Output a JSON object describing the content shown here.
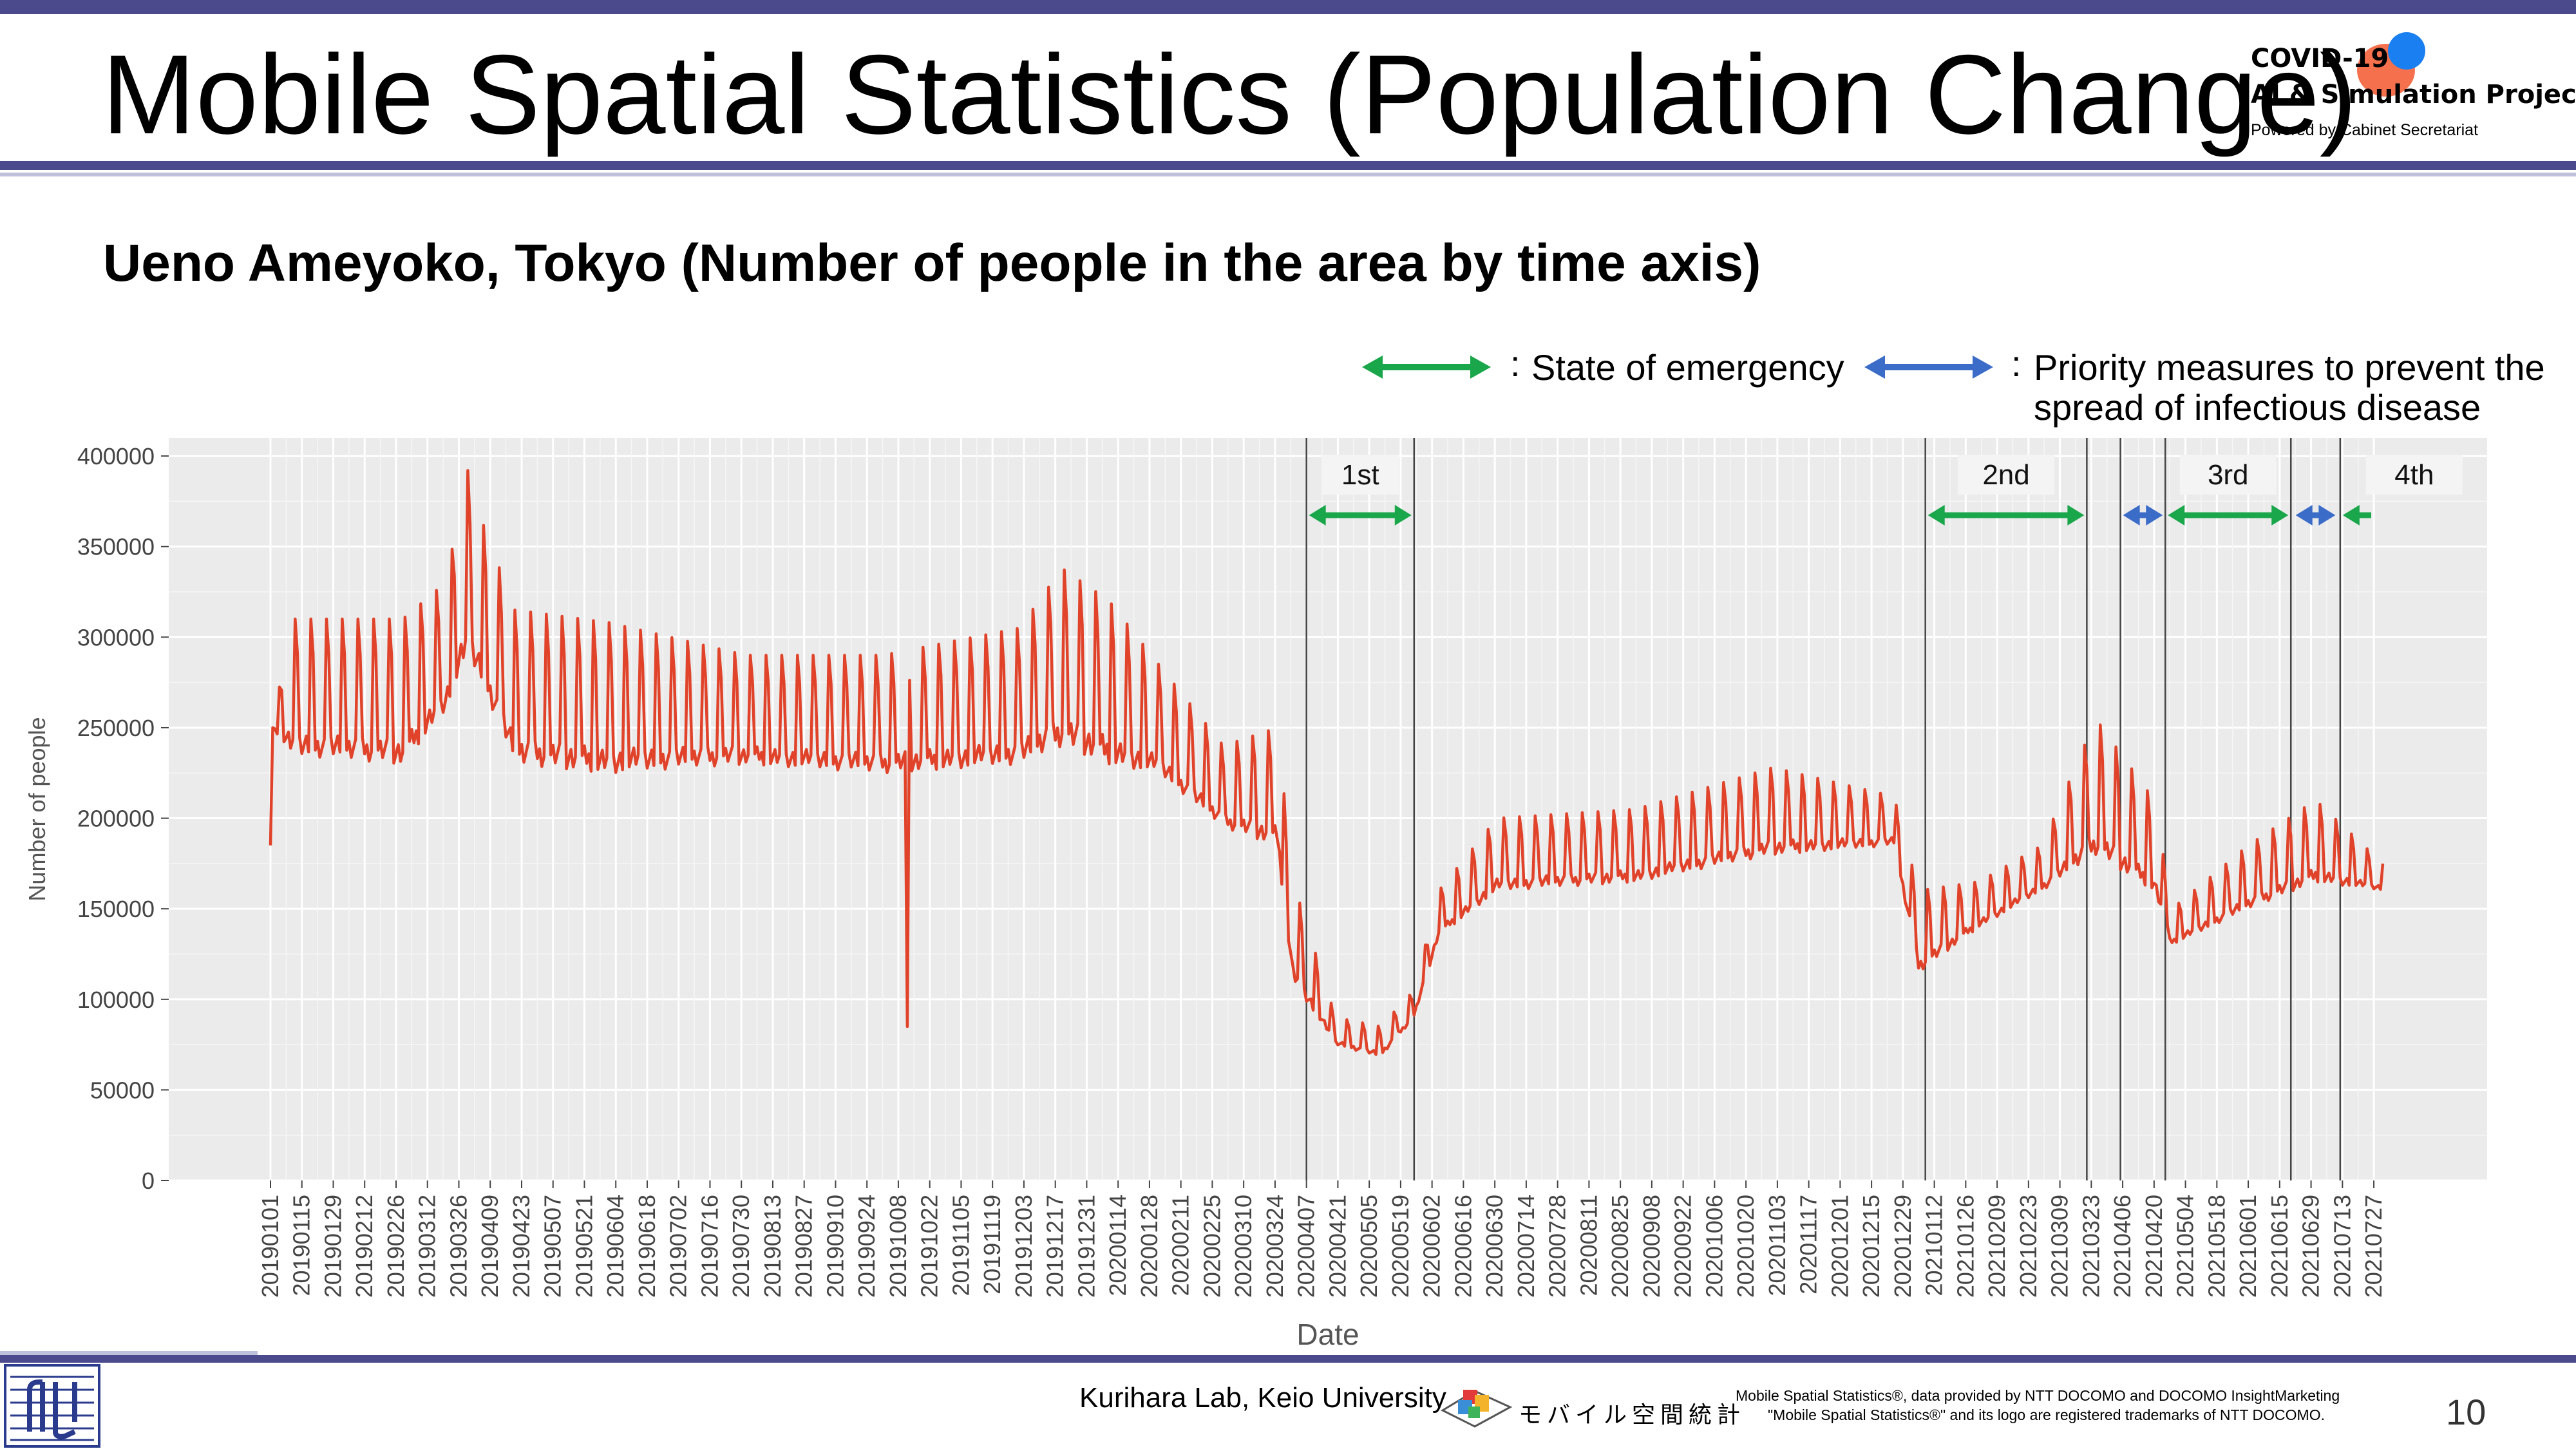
{
  "header": {
    "title": "Mobile Spatial Statistics (Population Change)",
    "logo_line1": "COVID-19",
    "logo_line2": "AI & Simulation Project",
    "logo_line3": "Powered by Cabinet Secretariat"
  },
  "subtitle": "Ueno Ameyoko, Tokyo (Number of people in the area by time axis)",
  "legend": {
    "emergency_label": "State of emergency",
    "priority_label_1": "Priority measures to prevent the",
    "priority_label_2": "spread of infectious disease",
    "colon": ":",
    "emergency_color": "#1aa64a",
    "priority_color": "#3b6cc8"
  },
  "footer": {
    "lab": "Kurihara Lab, Keio University",
    "mobile_jp": "モバイル空間統計",
    "note1": "Mobile Spatial Statistics®, data provided by NTT DOCOMO and DOCOMO InsightMarketing",
    "note2": "\"Mobile Spatial Statistics®\" and its logo are registered trademarks of NTT DOCOMO.",
    "page": "10"
  },
  "chart_data": {
    "type": "line",
    "xlabel": "Date",
    "ylabel": "Number of people",
    "ylim": [
      0,
      410000
    ],
    "yticks": [
      0,
      50000,
      100000,
      150000,
      200000,
      250000,
      300000,
      350000,
      400000
    ],
    "grid": true,
    "line_color": "#e0432a",
    "x_start": "20190101",
    "x_end": "20210731",
    "xticks": [
      "20190101",
      "20190115",
      "20190129",
      "20190212",
      "20190226",
      "20190312",
      "20190326",
      "20190409",
      "20190423",
      "20190507",
      "20190521",
      "20190604",
      "20190618",
      "20190702",
      "20190716",
      "20190730",
      "20190813",
      "20190827",
      "20190910",
      "20190924",
      "20191008",
      "20191022",
      "20191105",
      "20191119",
      "20191203",
      "20191217",
      "20191231",
      "20200114",
      "20200128",
      "20200211",
      "20200225",
      "20200310",
      "20200324",
      "20200407",
      "20200421",
      "20200505",
      "20200519",
      "20200602",
      "20200616",
      "20200630",
      "20200714",
      "20200728",
      "20200811",
      "20200825",
      "20200908",
      "20200922",
      "20201006",
      "20201020",
      "20201103",
      "20201117",
      "20201201",
      "20201215",
      "20201229",
      "20210112",
      "20210126",
      "20210209",
      "20210223",
      "20210309",
      "20210323",
      "20210406",
      "20210420",
      "20210504",
      "20210518",
      "20210601",
      "20210615",
      "20210629",
      "20210713",
      "20210727"
    ],
    "series_anchors": [
      {
        "date": "20190101",
        "base": 185000,
        "peak": 185000
      },
      {
        "date": "20190102",
        "base": 250000,
        "peak": 250000
      },
      {
        "date": "20190110",
        "base": 235000,
        "peak": 310000
      },
      {
        "date": "20190301",
        "base": 230000,
        "peak": 310000
      },
      {
        "date": "20190320",
        "base": 260000,
        "peak": 330000
      },
      {
        "date": "20190330",
        "base": 290000,
        "peak": 392000
      },
      {
        "date": "20190405",
        "base": 275000,
        "peak": 365000
      },
      {
        "date": "20190420",
        "base": 230000,
        "peak": 315000
      },
      {
        "date": "20190601",
        "base": 225000,
        "peak": 308000
      },
      {
        "date": "20190801",
        "base": 230000,
        "peak": 290000
      },
      {
        "date": "20191001",
        "base": 225000,
        "peak": 290000
      },
      {
        "date": "20191201",
        "base": 230000,
        "peak": 305000
      },
      {
        "date": "20191220",
        "base": 240000,
        "peak": 338000
      },
      {
        "date": "20200110",
        "base": 230000,
        "peak": 320000
      },
      {
        "date": "20200201",
        "base": 225000,
        "peak": 285000
      },
      {
        "date": "20200301",
        "base": 195000,
        "peak": 240000
      },
      {
        "date": "20200325",
        "base": 185000,
        "peak": 250000
      },
      {
        "date": "20200401",
        "base": 110000,
        "peak": 165000
      },
      {
        "date": "20200420",
        "base": 75000,
        "peak": 90000
      },
      {
        "date": "20200510",
        "base": 68000,
        "peak": 85000
      },
      {
        "date": "20200525",
        "base": 90000,
        "peak": 105000
      },
      {
        "date": "20200605",
        "base": 135000,
        "peak": 160000
      },
      {
        "date": "20200701",
        "base": 160000,
        "peak": 200000
      },
      {
        "date": "20200901",
        "base": 165000,
        "peak": 205000
      },
      {
        "date": "20201101",
        "base": 180000,
        "peak": 228000
      },
      {
        "date": "20201225",
        "base": 185000,
        "peak": 212000
      },
      {
        "date": "20210105",
        "base": 115000,
        "peak": 160000
      },
      {
        "date": "20210201",
        "base": 140000,
        "peak": 165000
      },
      {
        "date": "20210301",
        "base": 160000,
        "peak": 185000
      },
      {
        "date": "20210325",
        "base": 180000,
        "peak": 255000
      },
      {
        "date": "20210420",
        "base": 160000,
        "peak": 210000
      },
      {
        "date": "20210428",
        "base": 130000,
        "peak": 150000
      },
      {
        "date": "20210601",
        "base": 150000,
        "peak": 185000
      },
      {
        "date": "20210701",
        "base": 165000,
        "peak": 210000
      },
      {
        "date": "20210731",
        "base": 160000,
        "peak": 175000
      }
    ],
    "spikes": [
      {
        "date": "20191012",
        "value": 85000
      }
    ],
    "phase_lines": [
      "20200407",
      "20200525",
      "20210108",
      "20210321",
      "20210405",
      "20210425",
      "20210620",
      "20210712"
    ],
    "phases": [
      {
        "label": "1st",
        "start": "20200407",
        "end": "20200525",
        "kind": "emergency"
      },
      {
        "label": "2nd",
        "start": "20210108",
        "end": "20210321",
        "kind": "emergency"
      },
      {
        "label": "",
        "start": "20210405",
        "end": "20210425",
        "kind": "priority"
      },
      {
        "label": "3rd",
        "start": "20210425",
        "end": "20210620",
        "kind": "emergency"
      },
      {
        "label": "",
        "start": "20210621",
        "end": "20210711",
        "kind": "priority"
      },
      {
        "label": "4th",
        "start": "20210712",
        "end": "20210731",
        "kind": "emergency"
      }
    ]
  }
}
